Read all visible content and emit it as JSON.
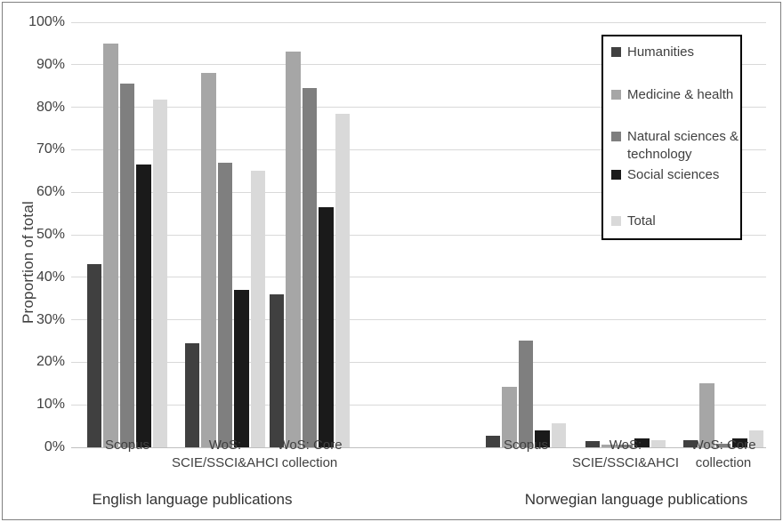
{
  "chart_data": {
    "type": "bar",
    "title": "",
    "ylabel": "Proportion of total",
    "ylim": [
      0,
      100
    ],
    "ytick_step": 10,
    "ytick_suffix": "%",
    "grid": true,
    "legend_position": "top-right",
    "group_labels": [
      "English language publications",
      "Norwegian language publications"
    ],
    "categories": [
      "Scopus",
      "WoS:\nSCIE/SSCI&AHCI",
      "WoS: Core\ncollection",
      "Scopus",
      "WoS:\nSCIE/SSCI&AHCI",
      "WoS: Core\ncollection"
    ],
    "series": [
      {
        "name": "Humanities",
        "legend_label": "Humanities",
        "color": "#404040",
        "values": [
          43,
          24.5,
          36,
          2.8,
          1.5,
          1.7
        ]
      },
      {
        "name": "Medicine & health",
        "legend_label": "Medicine & health",
        "color": "#a6a6a6",
        "values": [
          95,
          88,
          93,
          14.3,
          0.7,
          15
        ]
      },
      {
        "name": "Natural sciences & technology",
        "legend_label": "Natural sciences &\ntechnology",
        "color": "#7f7f7f",
        "values": [
          85.5,
          67,
          84.5,
          25.2,
          0.6,
          0.8
        ]
      },
      {
        "name": "Social sciences",
        "legend_label": "Social sciences",
        "color": "#1a1a1a",
        "values": [
          66.5,
          37,
          56.5,
          4,
          2.1,
          2.1
        ]
      },
      {
        "name": "Total",
        "legend_label": "Total",
        "color": "#d9d9d9",
        "values": [
          81.7,
          65,
          78.5,
          5.7,
          1.6,
          3.9
        ]
      }
    ]
  }
}
